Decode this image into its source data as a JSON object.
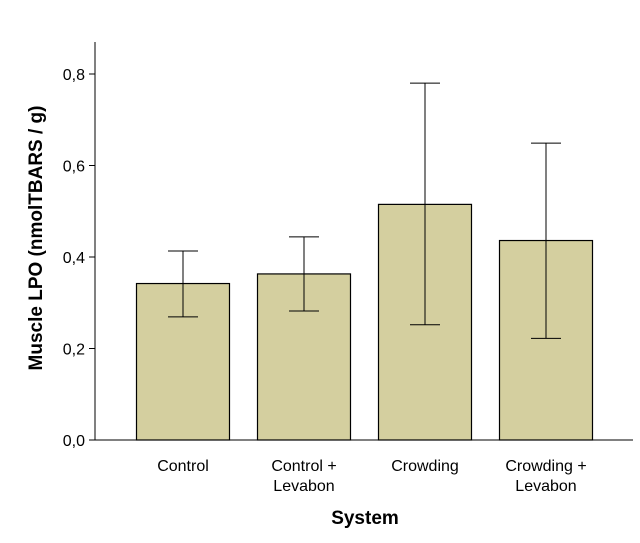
{
  "chart_data": {
    "type": "bar",
    "title": "",
    "xlabel": "System",
    "ylabel": "Muscle LPO (nmolTBARS / g)",
    "categories": [
      [
        "Control"
      ],
      [
        "Control +",
        "Levabon"
      ],
      [
        "Crowding"
      ],
      [
        "Crowding +",
        "Levabon"
      ]
    ],
    "values": [
      0.342,
      0.363,
      0.515,
      0.436
    ],
    "error_low": [
      0.269,
      0.282,
      0.252,
      0.222
    ],
    "error_high": [
      0.413,
      0.444,
      0.78,
      0.649
    ],
    "ylim": [
      0,
      0.87
    ],
    "yticks": [
      0.0,
      0.2,
      0.4,
      0.6,
      0.8
    ],
    "ytick_labels": [
      "0,0",
      "0,2",
      "0,4",
      "0,6",
      "0,8"
    ],
    "grid": false,
    "legend": "none",
    "colors": {
      "bar_fill": "#d4cf9f",
      "bar_stroke": "#000000",
      "axis": "#000000"
    }
  }
}
